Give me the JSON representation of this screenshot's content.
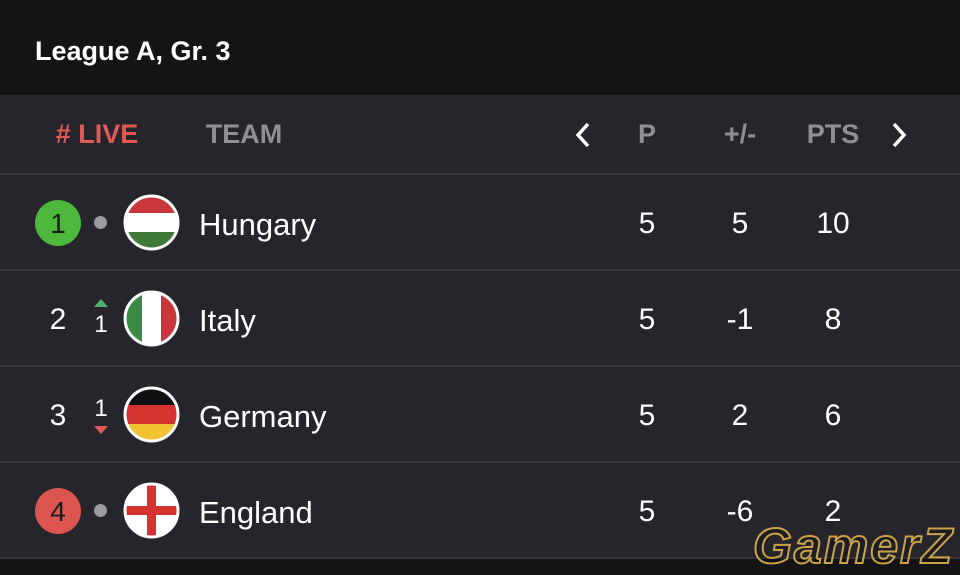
{
  "header": {
    "title": "League A, Gr. 3"
  },
  "table": {
    "columns": {
      "rank": "# LIVE",
      "team": "TEAM",
      "played": "P",
      "diff": "+/-",
      "points": "PTS"
    },
    "rows": [
      {
        "rank": 1,
        "team": "Hungary",
        "played": 5,
        "diff": 5,
        "points": 10
      },
      {
        "rank": 2,
        "change": 1,
        "team": "Italy",
        "played": 5,
        "diff": -1,
        "points": 8
      },
      {
        "rank": 3,
        "change": 1,
        "team": "Germany",
        "played": 5,
        "diff": 2,
        "points": 6
      },
      {
        "rank": 4,
        "team": "England",
        "played": 5,
        "diff": -6,
        "points": 2
      }
    ]
  },
  "watermark": "GamerZ"
}
